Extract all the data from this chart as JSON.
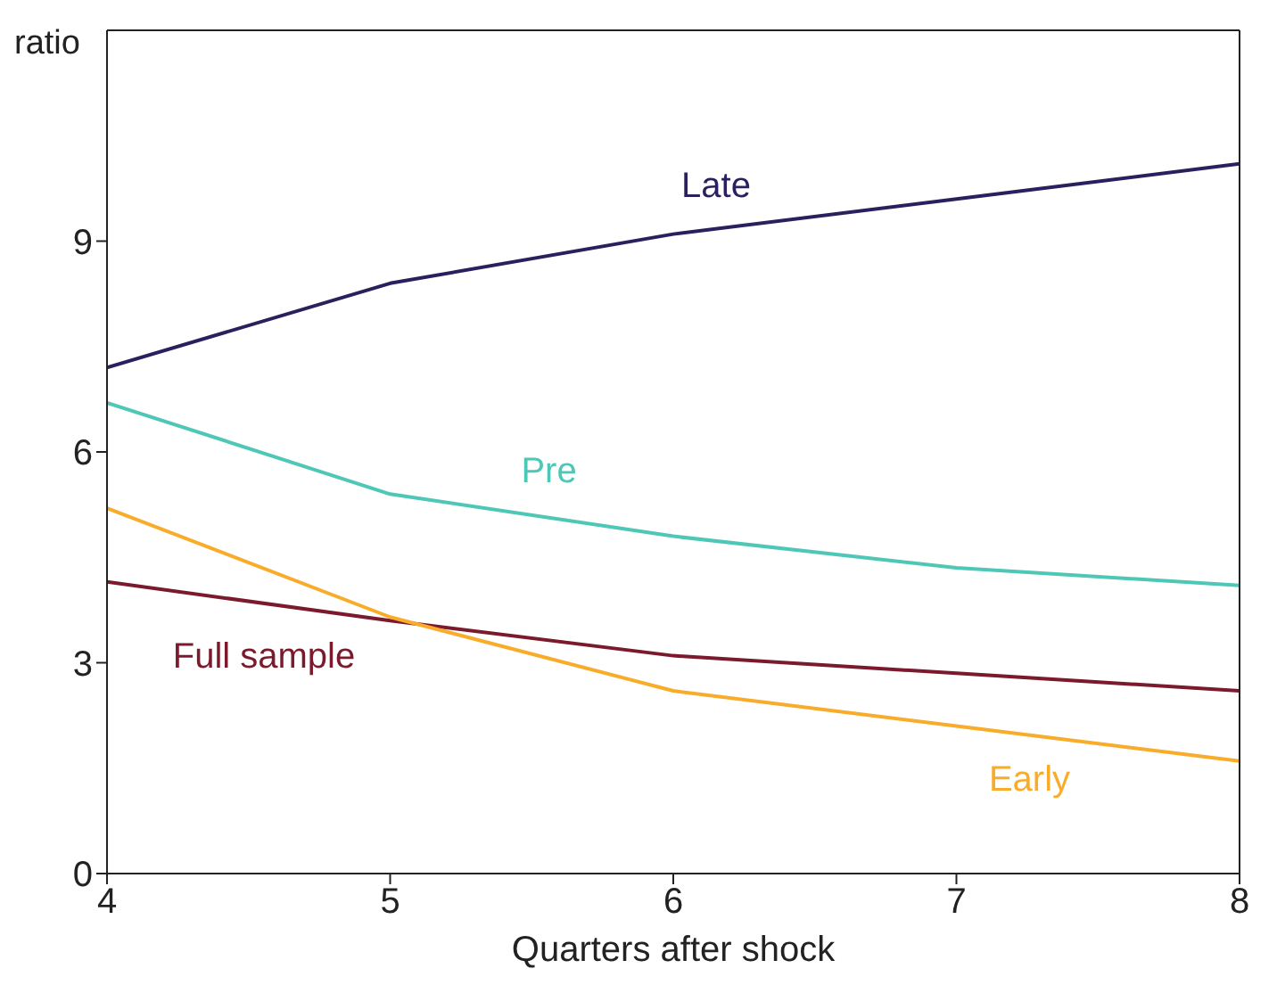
{
  "chart_data": {
    "type": "line",
    "xlabel": "Quarters after shock",
    "ylabel": "ratio",
    "x": [
      4,
      5,
      6,
      7,
      8
    ],
    "xlim": [
      4,
      8
    ],
    "xticks": [
      4,
      5,
      6,
      7,
      8
    ],
    "ylim": [
      0,
      12
    ],
    "yticks": [
      0,
      3,
      6,
      9
    ],
    "grid": false,
    "legend": false,
    "marker": "none",
    "line_style": "solid",
    "series": [
      {
        "name": "Late",
        "color": "#2b1f5e",
        "values": [
          7.2,
          8.4,
          9.1,
          9.6,
          10.1
        ]
      },
      {
        "name": "Pre",
        "color": "#4fc7b6",
        "values": [
          6.7,
          5.4,
          4.8,
          4.35,
          4.1
        ]
      },
      {
        "name": "Full sample",
        "color": "#7a1a2c",
        "values": [
          4.15,
          3.6,
          3.1,
          2.85,
          2.6
        ]
      },
      {
        "name": "Early",
        "color": "#f8ac2a",
        "values": [
          5.2,
          3.65,
          2.6,
          2.1,
          1.6
        ]
      }
    ]
  }
}
